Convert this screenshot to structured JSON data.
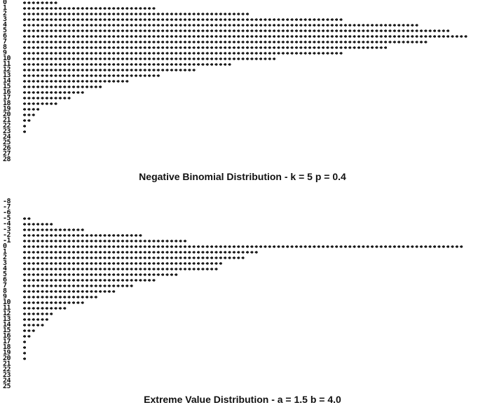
{
  "chart_data": [
    {
      "type": "bar",
      "orientation": "horizontal",
      "title": "Negative Binomial Distribution - k = 5 p = 0.4",
      "categories": [
        "0",
        "1",
        "2",
        "3",
        "4",
        "5",
        "6",
        "7",
        "8",
        "9",
        "10",
        "11",
        "12",
        "13",
        "14",
        "15",
        "16",
        "17",
        "18",
        "19",
        "20",
        "21",
        "22",
        "23",
        "24",
        "25",
        "26",
        "27",
        "28"
      ],
      "values": [
        8,
        30,
        51,
        72,
        89,
        96,
        100,
        91,
        82,
        72,
        57,
        47,
        39,
        31,
        24,
        18,
        14,
        11,
        8,
        4,
        3,
        2,
        1,
        1,
        0,
        0,
        0,
        0,
        0
      ],
      "grid": false
    },
    {
      "type": "bar",
      "orientation": "horizontal",
      "title": "Extreme Value Distribution - a = 1.5 b = 4.0",
      "categories": [
        "-8",
        "-7",
        "-6",
        "-5",
        "-4",
        "-3",
        "-2",
        "-1",
        "0",
        "1",
        "2",
        "3",
        "4",
        "5",
        "6",
        "7",
        "8",
        "9",
        "10",
        "11",
        "12",
        "13",
        "14",
        "15",
        "16",
        "17",
        "18",
        "19",
        "20",
        "21",
        "22",
        "23",
        "24",
        "25"
      ],
      "values": [
        0,
        0,
        0,
        2,
        7,
        14,
        27,
        37,
        99,
        53,
        50,
        45,
        44,
        35,
        30,
        25,
        21,
        17,
        14,
        10,
        7,
        6,
        5,
        3,
        2,
        1,
        1,
        1,
        1,
        0,
        0,
        0,
        0,
        0
      ],
      "grid": false
    }
  ]
}
